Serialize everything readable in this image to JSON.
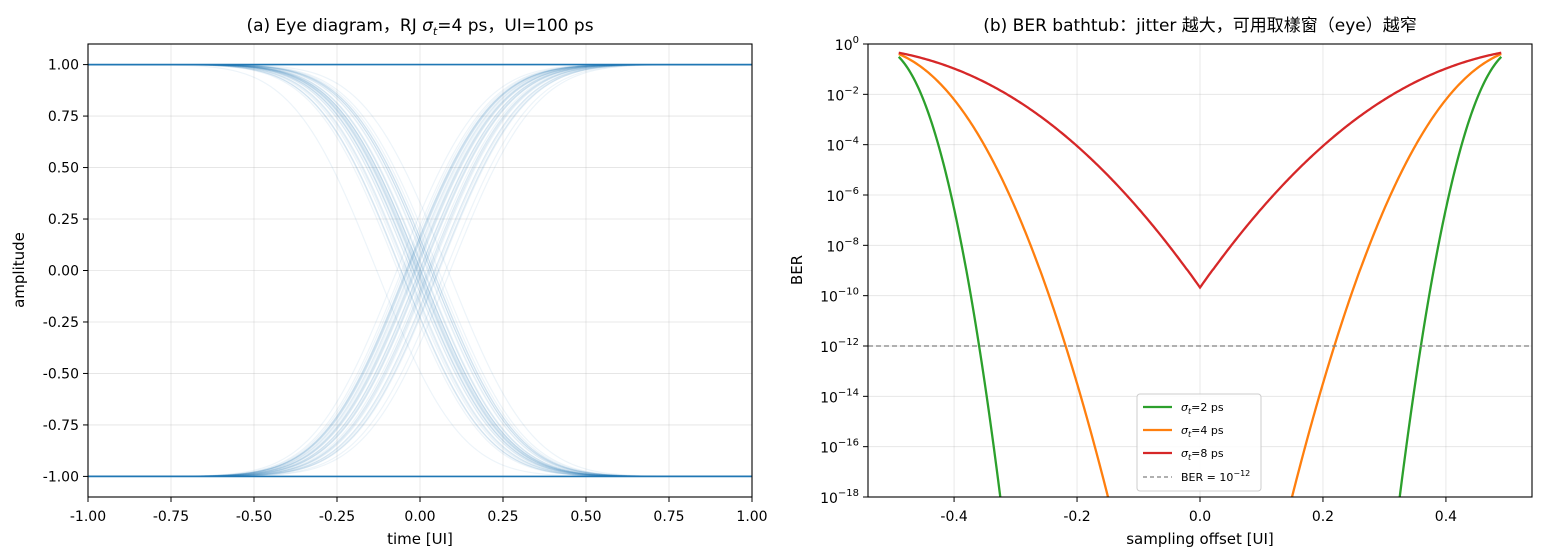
{
  "chart_data": [
    {
      "type": "line",
      "title": "(a) Eye diagram，RJ σt=4 ps，UI=100 ps",
      "title_parts": [
        "(a) Eye diagram，RJ ",
        "σ",
        "t",
        "=4 ps，UI=100 ps"
      ],
      "xlabel": "time [UI]",
      "ylabel": "amplitude",
      "xlim": [
        -1.0,
        1.0
      ],
      "ylim": [
        -1.1,
        1.1
      ],
      "xticks": [
        -1.0,
        -0.75,
        -0.5,
        -0.25,
        0.0,
        0.25,
        0.5,
        0.75,
        1.0
      ],
      "xtick_labels": [
        "-1.00",
        "-0.75",
        "-0.50",
        "-0.25",
        "0.00",
        "0.25",
        "0.50",
        "0.75",
        "1.00"
      ],
      "yticks": [
        1.0,
        0.75,
        0.5,
        0.25,
        0.0,
        -0.25,
        -0.5,
        -0.75,
        -1.0
      ],
      "ytick_labels": [
        "1.00",
        "0.75",
        "0.50",
        "0.25",
        "0.00",
        "-0.25",
        "-0.50",
        "-0.75",
        "-1.00"
      ],
      "grid": true,
      "series": [
        {
          "shape": "rising-edge",
          "count": 40,
          "x": [
            -1.0,
            -0.75,
            -0.5,
            -0.25,
            0.0,
            0.25,
            0.5,
            0.75,
            1.0
          ],
          "values": [
            -0.99,
            -0.97,
            -0.88,
            -0.58,
            0.0,
            0.58,
            0.88,
            0.97,
            0.99
          ]
        },
        {
          "shape": "falling-edge",
          "count": 40,
          "x": [
            -1.0,
            -0.75,
            -0.5,
            -0.25,
            0.0,
            0.25,
            0.5,
            0.75,
            1.0
          ],
          "values": [
            0.99,
            0.97,
            0.88,
            0.58,
            0.0,
            -0.58,
            -0.88,
            -0.97,
            -0.99
          ]
        },
        {
          "shape": "constant-high",
          "x": [
            -1.0,
            1.0
          ],
          "values": [
            1.0,
            1.0
          ]
        },
        {
          "shape": "constant-low",
          "x": [
            -1.0,
            1.0
          ],
          "values": [
            -1.0,
            -1.0
          ]
        }
      ],
      "edge_jitter_sigma_ui": 0.04,
      "line_color": "#1f77b4"
    },
    {
      "type": "line",
      "title": "(b) BER bathtub：jitter 越大，可用取樣窗（eye）越窄",
      "xlabel": "sampling offset [UI]",
      "ylabel": "BER",
      "yscale": "log",
      "xlim": [
        -0.54,
        0.54
      ],
      "ylim": [
        1e-18,
        1
      ],
      "xticks": [
        -0.4,
        -0.2,
        0.0,
        0.2,
        0.4
      ],
      "xtick_labels": [
        "-0.4",
        "-0.2",
        "0.0",
        "0.2",
        "0.4"
      ],
      "ytick_exponents": [
        0,
        -2,
        -4,
        -6,
        -8,
        -10,
        -12,
        -14,
        -16,
        -18
      ],
      "grid": true,
      "legend_position": "lower center",
      "series": [
        {
          "name": "σt=2 ps",
          "name_parts": [
            "σ",
            "t",
            "=2 ps"
          ],
          "color": "#2ca02c",
          "sigma_ui": 0.02,
          "x": [
            -0.49,
            -0.45,
            -0.42,
            -0.4,
            -0.38,
            -0.36,
            -0.34,
            -0.325,
            0.325,
            0.34,
            0.36,
            0.38,
            0.4,
            0.42,
            0.45,
            0.49
          ],
          "values": [
            0.154,
            0.0228,
            0.00011,
            1.1e-06,
            3.2e-09,
            5.6e-12,
            2.6e-15,
            6e-18,
            6e-18,
            2.6e-15,
            5.6e-12,
            3.2e-09,
            1.1e-06,
            0.00011,
            0.0228,
            0.154
          ]
        },
        {
          "name": "σt=4 ps",
          "name_parts": [
            "σ",
            "t",
            "=4 ps"
          ],
          "color": "#ff7f0e",
          "sigma_ui": 0.04,
          "x": [
            -0.49,
            -0.45,
            -0.4,
            -0.35,
            -0.3,
            -0.25,
            -0.22,
            -0.19,
            -0.16,
            0.16,
            0.19,
            0.22,
            0.25,
            0.3,
            0.35,
            0.4,
            0.45,
            0.49
          ],
          "values": [
            0.169,
            0.0655,
            0.0062,
            0.00013,
            7.7e-07,
            1.3e-09,
            2.1e-11,
            1.9e-13,
            1e-15,
            1e-15,
            1.9e-13,
            2.1e-11,
            1.3e-09,
            7.7e-07,
            0.00013,
            0.0062,
            0.0655,
            0.169
          ]
        },
        {
          "name": "σt=8 ps",
          "name_parts": [
            "σ",
            "t",
            "=8 ps"
          ],
          "color": "#d62728",
          "sigma_ui": 0.08,
          "x": [
            -0.49,
            -0.45,
            -0.4,
            -0.35,
            -0.3,
            -0.25,
            -0.2,
            -0.15,
            -0.1,
            -0.05,
            0.0,
            0.05,
            0.1,
            0.15,
            0.2,
            0.25,
            0.3,
            0.35,
            0.4,
            0.45,
            0.49
          ],
          "values": [
            0.2,
            0.12,
            0.045,
            0.0125,
            0.0028,
            0.00046,
            6.3e-05,
            5.9e-06,
            3.9e-07,
            1.2e-08,
            2.2e-10,
            1.2e-08,
            3.9e-07,
            5.9e-06,
            6.3e-05,
            0.00046,
            0.0028,
            0.0125,
            0.045,
            0.12,
            0.2
          ]
        },
        {
          "name": "BER = 10^-12",
          "name_parts": [
            "BER = 10",
            "−12"
          ],
          "color": "#808080",
          "dashed": true,
          "x": [
            -0.54,
            0.54
          ],
          "values": [
            1e-12,
            1e-12
          ]
        }
      ]
    }
  ]
}
